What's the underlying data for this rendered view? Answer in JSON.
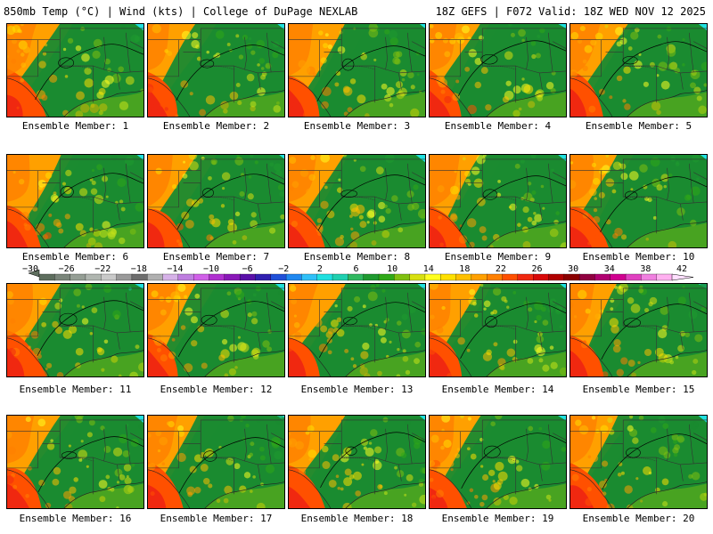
{
  "header": {
    "title_left": "850mb Temp (°C) | Wind (kts) | College of DuPage NEXLAB",
    "title_right": "18Z GEFS | F072 Valid: 18Z WED NOV 12 2025"
  },
  "panels": [
    {
      "label": "Ensemble Member: 1"
    },
    {
      "label": "Ensemble Member: 2"
    },
    {
      "label": "Ensemble Member: 3"
    },
    {
      "label": "Ensemble Member: 4"
    },
    {
      "label": "Ensemble Member: 5"
    },
    {
      "label": "Ensemble Member: 6"
    },
    {
      "label": "Ensemble Member: 7"
    },
    {
      "label": "Ensemble Member: 8"
    },
    {
      "label": "Ensemble Member: 9"
    },
    {
      "label": "Ensemble Member: 10"
    },
    {
      "label": "Ensemble Member: 11"
    },
    {
      "label": "Ensemble Member: 12"
    },
    {
      "label": "Ensemble Member: 13"
    },
    {
      "label": "Ensemble Member: 14"
    },
    {
      "label": "Ensemble Member: 15"
    },
    {
      "label": "Ensemble Member: 16"
    },
    {
      "label": "Ensemble Member: 17"
    },
    {
      "label": "Ensemble Member: 18"
    },
    {
      "label": "Ensemble Member: 19"
    },
    {
      "label": "Ensemble Member: 20"
    }
  ],
  "colorbar": {
    "labels": [
      "−30",
      "−26",
      "−22",
      "−18",
      "−14",
      "−10",
      "−6",
      "−2",
      "2",
      "6",
      "10",
      "14",
      "18",
      "22",
      "26",
      "30",
      "34",
      "38",
      "42"
    ],
    "colors": [
      "#5e6e5e",
      "#7a857a",
      "#959e95",
      "#b0b6b0",
      "#c9c9c9",
      "#9a9a9a",
      "#6e6e6e",
      "#b0b0b0",
      "#d6b2e8",
      "#bf7fe0",
      "#d060e8",
      "#b030d0",
      "#8a18b8",
      "#5a10a8",
      "#3020b0",
      "#2050d8",
      "#2088f0",
      "#30c0f8",
      "#20e0e0",
      "#20d0b0",
      "#30b860",
      "#1f9a30",
      "#30a818",
      "#80c010",
      "#d8e010",
      "#ffff20",
      "#ffe000",
      "#ffc000",
      "#ffa000",
      "#ff8000",
      "#ff5000",
      "#f02810",
      "#d80808",
      "#b00000",
      "#8a0000",
      "#900040",
      "#b00070",
      "#d00090",
      "#e040c0",
      "#f080e0",
      "#ffb0f0"
    ],
    "arrow_color": "#ffe0ff"
  }
}
